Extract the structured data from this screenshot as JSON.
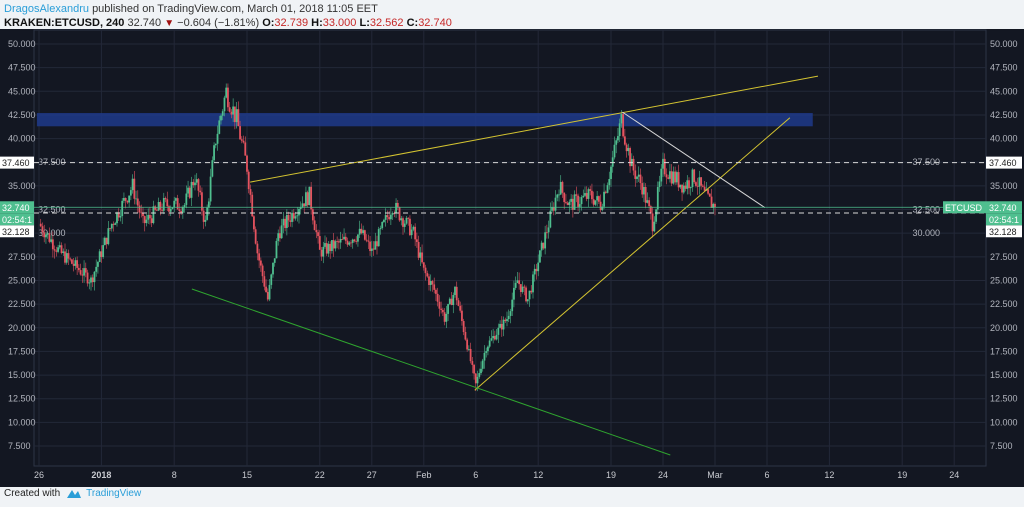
{
  "header": {
    "author": "DragosAlexandru",
    "published": "published on TradingView.com, March 01, 2018 11:05 EET",
    "symbol": "KRAKEN:ETCUSD, 240",
    "last": "32.740",
    "change": "−0.604 (−1.81%)",
    "o_label": "O:",
    "o": "32.739",
    "h_label": "H:",
    "h": "33.000",
    "l_label": "L:",
    "l": "32.562",
    "c_label": "C:",
    "c": "32.740"
  },
  "footer": {
    "created_with": "Created with",
    "brand": "TradingView"
  },
  "chart_data": {
    "type": "candlestick",
    "interval": "240",
    "y_ticks": [
      "50.000",
      "47.500",
      "45.000",
      "42.500",
      "40.000",
      "37.500",
      "35.000",
      "32.500",
      "30.000",
      "27.500",
      "25.000",
      "22.500",
      "20.000",
      "17.500",
      "15.000",
      "12.500",
      "10.000",
      "7.500"
    ],
    "ylim": [
      7.5,
      50
    ],
    "x_ticks": [
      {
        "label": "26",
        "day": 0
      },
      {
        "label": "2018",
        "day": 6,
        "bold": true
      },
      {
        "label": "8",
        "day": 13
      },
      {
        "label": "15",
        "day": 20
      },
      {
        "label": "22",
        "day": 27
      },
      {
        "label": "27",
        "day": 32
      },
      {
        "label": "Feb",
        "day": 37
      },
      {
        "label": "6",
        "day": 42
      },
      {
        "label": "12",
        "day": 48
      },
      {
        "label": "19",
        "day": 55
      },
      {
        "label": "24",
        "day": 60
      },
      {
        "label": "Mar",
        "day": 65
      },
      {
        "label": "6",
        "day": 70
      },
      {
        "label": "12",
        "day": 76
      },
      {
        "label": "19",
        "day": 83
      },
      {
        "label": "24",
        "day": 88
      }
    ],
    "close_path": [
      [
        0,
        31
      ],
      [
        2,
        28
      ],
      [
        5,
        25
      ],
      [
        6,
        28
      ],
      [
        7,
        31
      ],
      [
        9,
        35
      ],
      [
        10,
        31
      ],
      [
        12,
        33
      ],
      [
        14,
        33
      ],
      [
        15,
        36
      ],
      [
        16,
        31
      ],
      [
        17,
        40
      ],
      [
        18,
        45
      ],
      [
        19,
        42
      ],
      [
        20,
        37
      ],
      [
        21,
        28
      ],
      [
        22,
        23
      ],
      [
        23,
        30
      ],
      [
        25,
        33
      ],
      [
        26,
        34
      ],
      [
        27,
        28
      ],
      [
        29,
        29
      ],
      [
        31,
        30
      ],
      [
        32,
        28
      ],
      [
        34,
        33
      ],
      [
        36,
        30
      ],
      [
        37,
        26
      ],
      [
        38,
        24
      ],
      [
        39,
        21
      ],
      [
        40,
        24
      ],
      [
        41,
        19
      ],
      [
        42,
        14
      ],
      [
        43,
        18
      ],
      [
        45,
        21
      ],
      [
        46,
        25
      ],
      [
        47,
        23
      ],
      [
        48,
        27
      ],
      [
        49,
        31
      ],
      [
        50,
        35
      ],
      [
        51,
        33
      ],
      [
        53,
        34
      ],
      [
        54,
        33
      ],
      [
        55,
        37
      ],
      [
        56,
        42
      ],
      [
        57,
        37
      ],
      [
        58,
        35
      ],
      [
        59,
        31
      ],
      [
        60,
        37
      ],
      [
        61,
        36
      ],
      [
        62,
        35
      ],
      [
        63,
        36
      ],
      [
        64,
        34
      ],
      [
        65,
        32.74
      ]
    ],
    "drawings": [
      {
        "type": "line",
        "color": "#d4c431",
        "from": [
          20.3,
          35.4
        ],
        "to": [
          74.9,
          46.6
        ]
      },
      {
        "type": "line",
        "color": "#d4c431",
        "from": [
          41.9,
          13.4
        ],
        "to": [
          72.2,
          42.2
        ]
      },
      {
        "type": "line",
        "color": "#d8d8d8",
        "from": [
          56.1,
          42.8
        ],
        "to": [
          69.8,
          32.7
        ]
      },
      {
        "type": "line",
        "color": "#2fa42f",
        "from": [
          14.7,
          24.1
        ],
        "to": [
          60.7,
          6.55
        ]
      },
      {
        "type": "zone",
        "color": "#1e3a8a",
        "days": [
          -0.2,
          74.4
        ],
        "prices": [
          41.3,
          42.7
        ]
      }
    ],
    "hlines": [
      {
        "price": 37.46,
        "label": "37.460",
        "style": "dashed"
      },
      {
        "price": 32.128,
        "label": "32.128",
        "style": "dashed"
      }
    ],
    "last_price": {
      "label": "32.740",
      "symbol": "ETCUSD",
      "countdown": "02:54:1",
      "price": 32.74
    },
    "colors": {
      "up": "#4fbf8f",
      "down": "#e5535f",
      "bg": "#131722",
      "grid": "#232838"
    }
  }
}
